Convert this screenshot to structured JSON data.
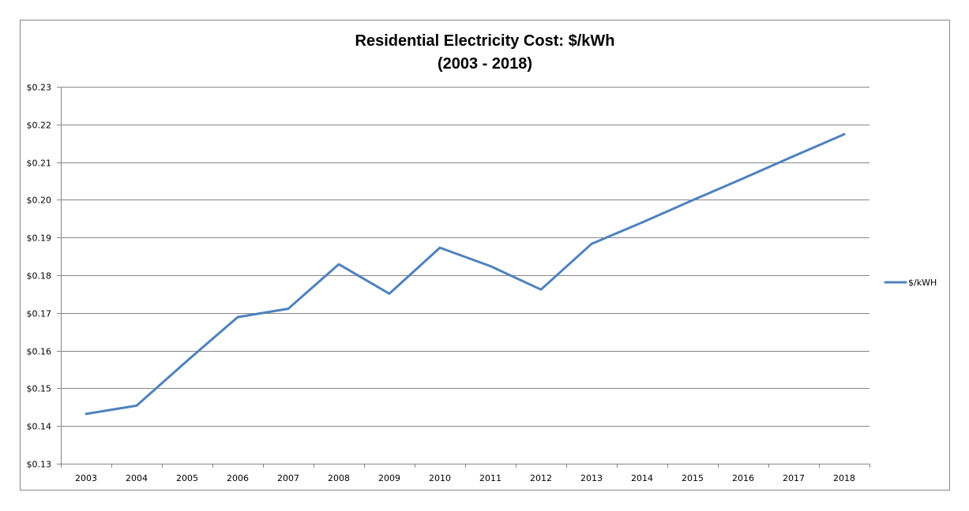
{
  "chart_data": {
    "type": "line",
    "title": "Residential Electricity Cost: $/kWh",
    "subtitle": "(2003 - 2018)",
    "xlabel": "",
    "ylabel": "",
    "categories": [
      "2003",
      "2004",
      "2005",
      "2006",
      "2007",
      "2008",
      "2009",
      "2010",
      "2011",
      "2012",
      "2013",
      "2014",
      "2015",
      "2016",
      "2017",
      "2018"
    ],
    "series": [
      {
        "name": "$/kWH",
        "color": "#4F81BD",
        "values": [
          0.1432,
          0.1454,
          0.1573,
          0.1689,
          0.1711,
          0.1829,
          0.1751,
          0.1873,
          0.1824,
          0.1762,
          0.1883,
          0.194,
          0.1999,
          0.2057,
          0.2116,
          0.2174
        ]
      }
    ],
    "ylim": [
      0.13,
      0.23
    ],
    "yticks": [
      0.13,
      0.14,
      0.15,
      0.16,
      0.17,
      0.18,
      0.19,
      0.2,
      0.21,
      0.22,
      0.23
    ],
    "ytick_labels": [
      "$0.13",
      "$0.14",
      "$0.15",
      "$0.16",
      "$0.17",
      "$0.18",
      "$0.19",
      "$0.20",
      "$0.21",
      "$0.22",
      "$0.23"
    ],
    "grid": true,
    "legend_position": "right"
  },
  "colors": {
    "gridline": "#868686",
    "axis": "#868686",
    "series": "#4F81BD"
  }
}
